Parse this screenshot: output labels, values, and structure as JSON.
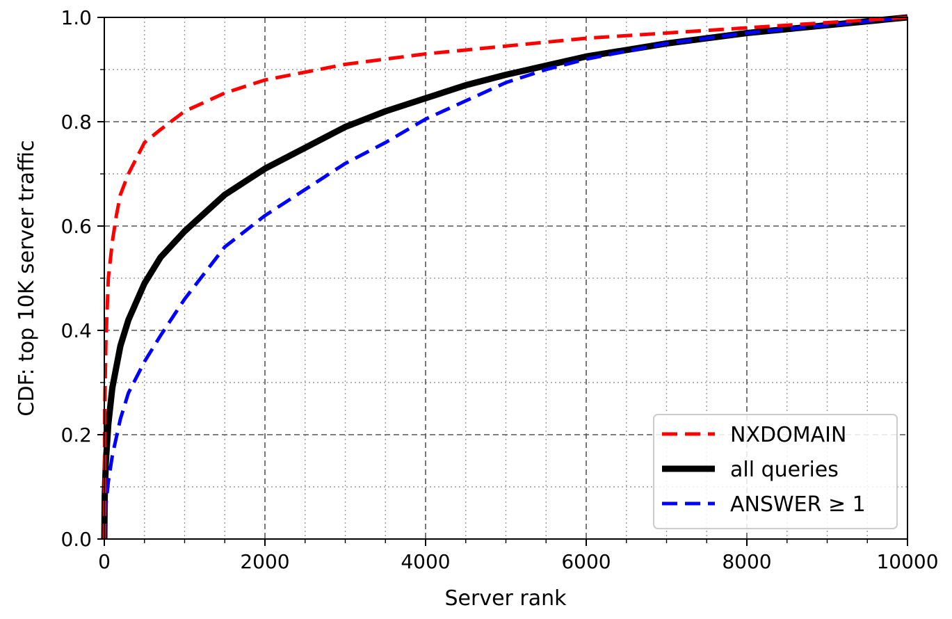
{
  "chart_data": {
    "type": "line",
    "title": "",
    "xlabel": "Server rank",
    "ylabel": "CDF: top 10K server traffic",
    "xlim": [
      0,
      10000
    ],
    "ylim": [
      0,
      1
    ],
    "x_ticks": [
      "0",
      "2000",
      "4000",
      "6000",
      "8000",
      "10000"
    ],
    "y_ticks": [
      "0.0",
      "0.2",
      "0.4",
      "0.6",
      "0.8",
      "1.0"
    ],
    "grid": true,
    "legend_position": "lower-right",
    "series": [
      {
        "name": "NXDOMAIN",
        "color": "#ff0000",
        "style": "dashed",
        "points": [
          [
            0,
            0.0
          ],
          [
            5,
            0.25
          ],
          [
            20,
            0.38
          ],
          [
            50,
            0.5
          ],
          [
            100,
            0.57
          ],
          [
            150,
            0.62
          ],
          [
            200,
            0.66
          ],
          [
            300,
            0.7
          ],
          [
            400,
            0.73
          ],
          [
            500,
            0.76
          ],
          [
            700,
            0.785
          ],
          [
            1000,
            0.82
          ],
          [
            1500,
            0.855
          ],
          [
            2000,
            0.88
          ],
          [
            2500,
            0.895
          ],
          [
            3000,
            0.91
          ],
          [
            4000,
            0.93
          ],
          [
            5000,
            0.945
          ],
          [
            6000,
            0.96
          ],
          [
            7000,
            0.97
          ],
          [
            8000,
            0.98
          ],
          [
            9000,
            0.99
          ],
          [
            10000,
            1.0
          ]
        ]
      },
      {
        "name": "all queries",
        "color": "#000000",
        "style": "solid",
        "points": [
          [
            0,
            0.0
          ],
          [
            5,
            0.08
          ],
          [
            20,
            0.15
          ],
          [
            50,
            0.22
          ],
          [
            100,
            0.29
          ],
          [
            200,
            0.37
          ],
          [
            300,
            0.42
          ],
          [
            500,
            0.49
          ],
          [
            700,
            0.54
          ],
          [
            1000,
            0.59
          ],
          [
            1500,
            0.66
          ],
          [
            2000,
            0.71
          ],
          [
            2500,
            0.75
          ],
          [
            3000,
            0.79
          ],
          [
            3500,
            0.82
          ],
          [
            4000,
            0.845
          ],
          [
            4500,
            0.87
          ],
          [
            5000,
            0.89
          ],
          [
            6000,
            0.925
          ],
          [
            7000,
            0.95
          ],
          [
            8000,
            0.97
          ],
          [
            9000,
            0.985
          ],
          [
            10000,
            1.0
          ]
        ]
      },
      {
        "name": "ANSWER ≥ 1",
        "color": "#0000ff",
        "style": "dashed",
        "points": [
          [
            0,
            0.0
          ],
          [
            10,
            0.05
          ],
          [
            50,
            0.11
          ],
          [
            100,
            0.16
          ],
          [
            200,
            0.23
          ],
          [
            300,
            0.28
          ],
          [
            500,
            0.34
          ],
          [
            700,
            0.39
          ],
          [
            1000,
            0.46
          ],
          [
            1500,
            0.56
          ],
          [
            2000,
            0.62
          ],
          [
            2500,
            0.67
          ],
          [
            3000,
            0.72
          ],
          [
            3500,
            0.76
          ],
          [
            4000,
            0.805
          ],
          [
            4500,
            0.84
          ],
          [
            5000,
            0.875
          ],
          [
            5500,
            0.9
          ],
          [
            6000,
            0.92
          ],
          [
            7000,
            0.95
          ],
          [
            8000,
            0.97
          ],
          [
            9000,
            0.985
          ],
          [
            10000,
            1.0
          ]
        ]
      }
    ]
  }
}
